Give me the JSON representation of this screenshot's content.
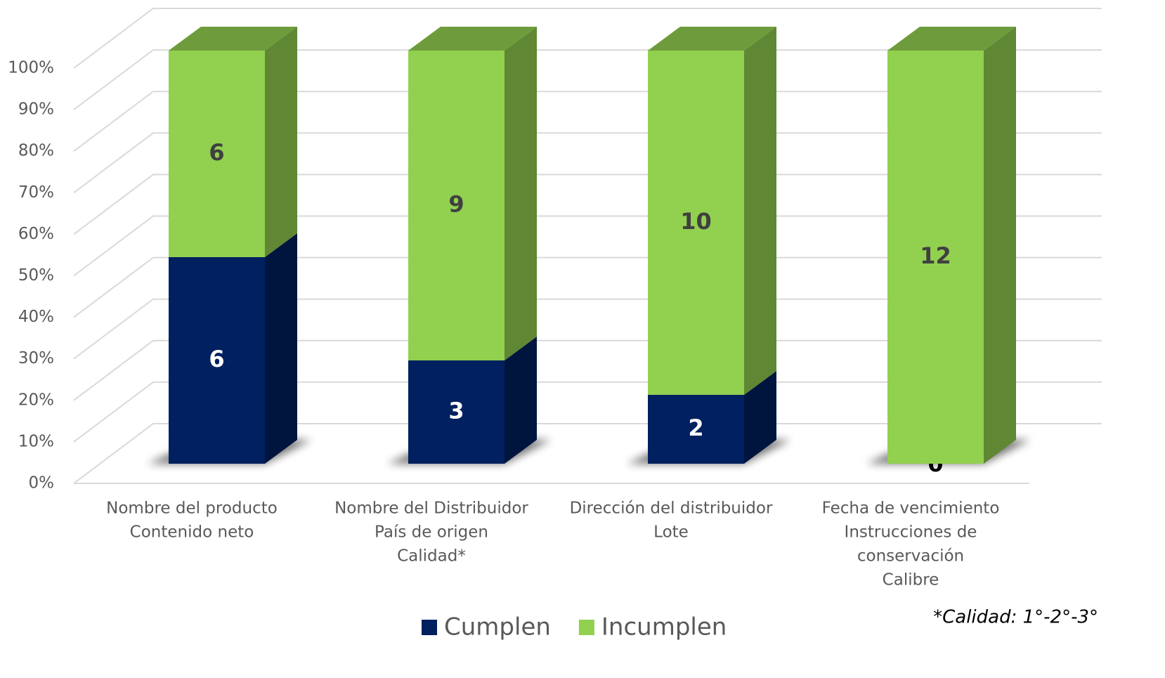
{
  "chart_data": {
    "type": "bar3d_percent",
    "categories": [
      [
        "Nombre del producto",
        "Contenido neto"
      ],
      [
        "Nombre del Distribuidor",
        "País de origen",
        "Calidad*"
      ],
      [
        "Dirección del distribuidor",
        "Lote"
      ],
      [
        "Fecha de vencimiento",
        "Instrucciones de",
        "conservación",
        "Calibre"
      ]
    ],
    "series": [
      {
        "name": "Cumplen",
        "color": "#002060",
        "values": [
          6,
          3,
          2,
          0
        ]
      },
      {
        "name": "Incumplen",
        "color": "#92d050",
        "values": [
          6,
          9,
          10,
          12
        ]
      }
    ],
    "ylim": [
      0,
      100
    ],
    "yticks": [
      {
        "value": 0,
        "label": "0%"
      },
      {
        "value": 10,
        "label": "10%"
      },
      {
        "value": 20,
        "label": "20%"
      },
      {
        "value": 30,
        "label": "30%"
      },
      {
        "value": 40,
        "label": "40%"
      },
      {
        "value": 50,
        "label": "50%"
      },
      {
        "value": 60,
        "label": "60%"
      },
      {
        "value": 70,
        "label": "70%"
      },
      {
        "value": 80,
        "label": "80%"
      },
      {
        "value": 90,
        "label": "90%"
      },
      {
        "value": 100,
        "label": "100%"
      }
    ],
    "grid": true,
    "legend": "bottom",
    "annotation": "*Calidad: 1°-2°-3°"
  }
}
